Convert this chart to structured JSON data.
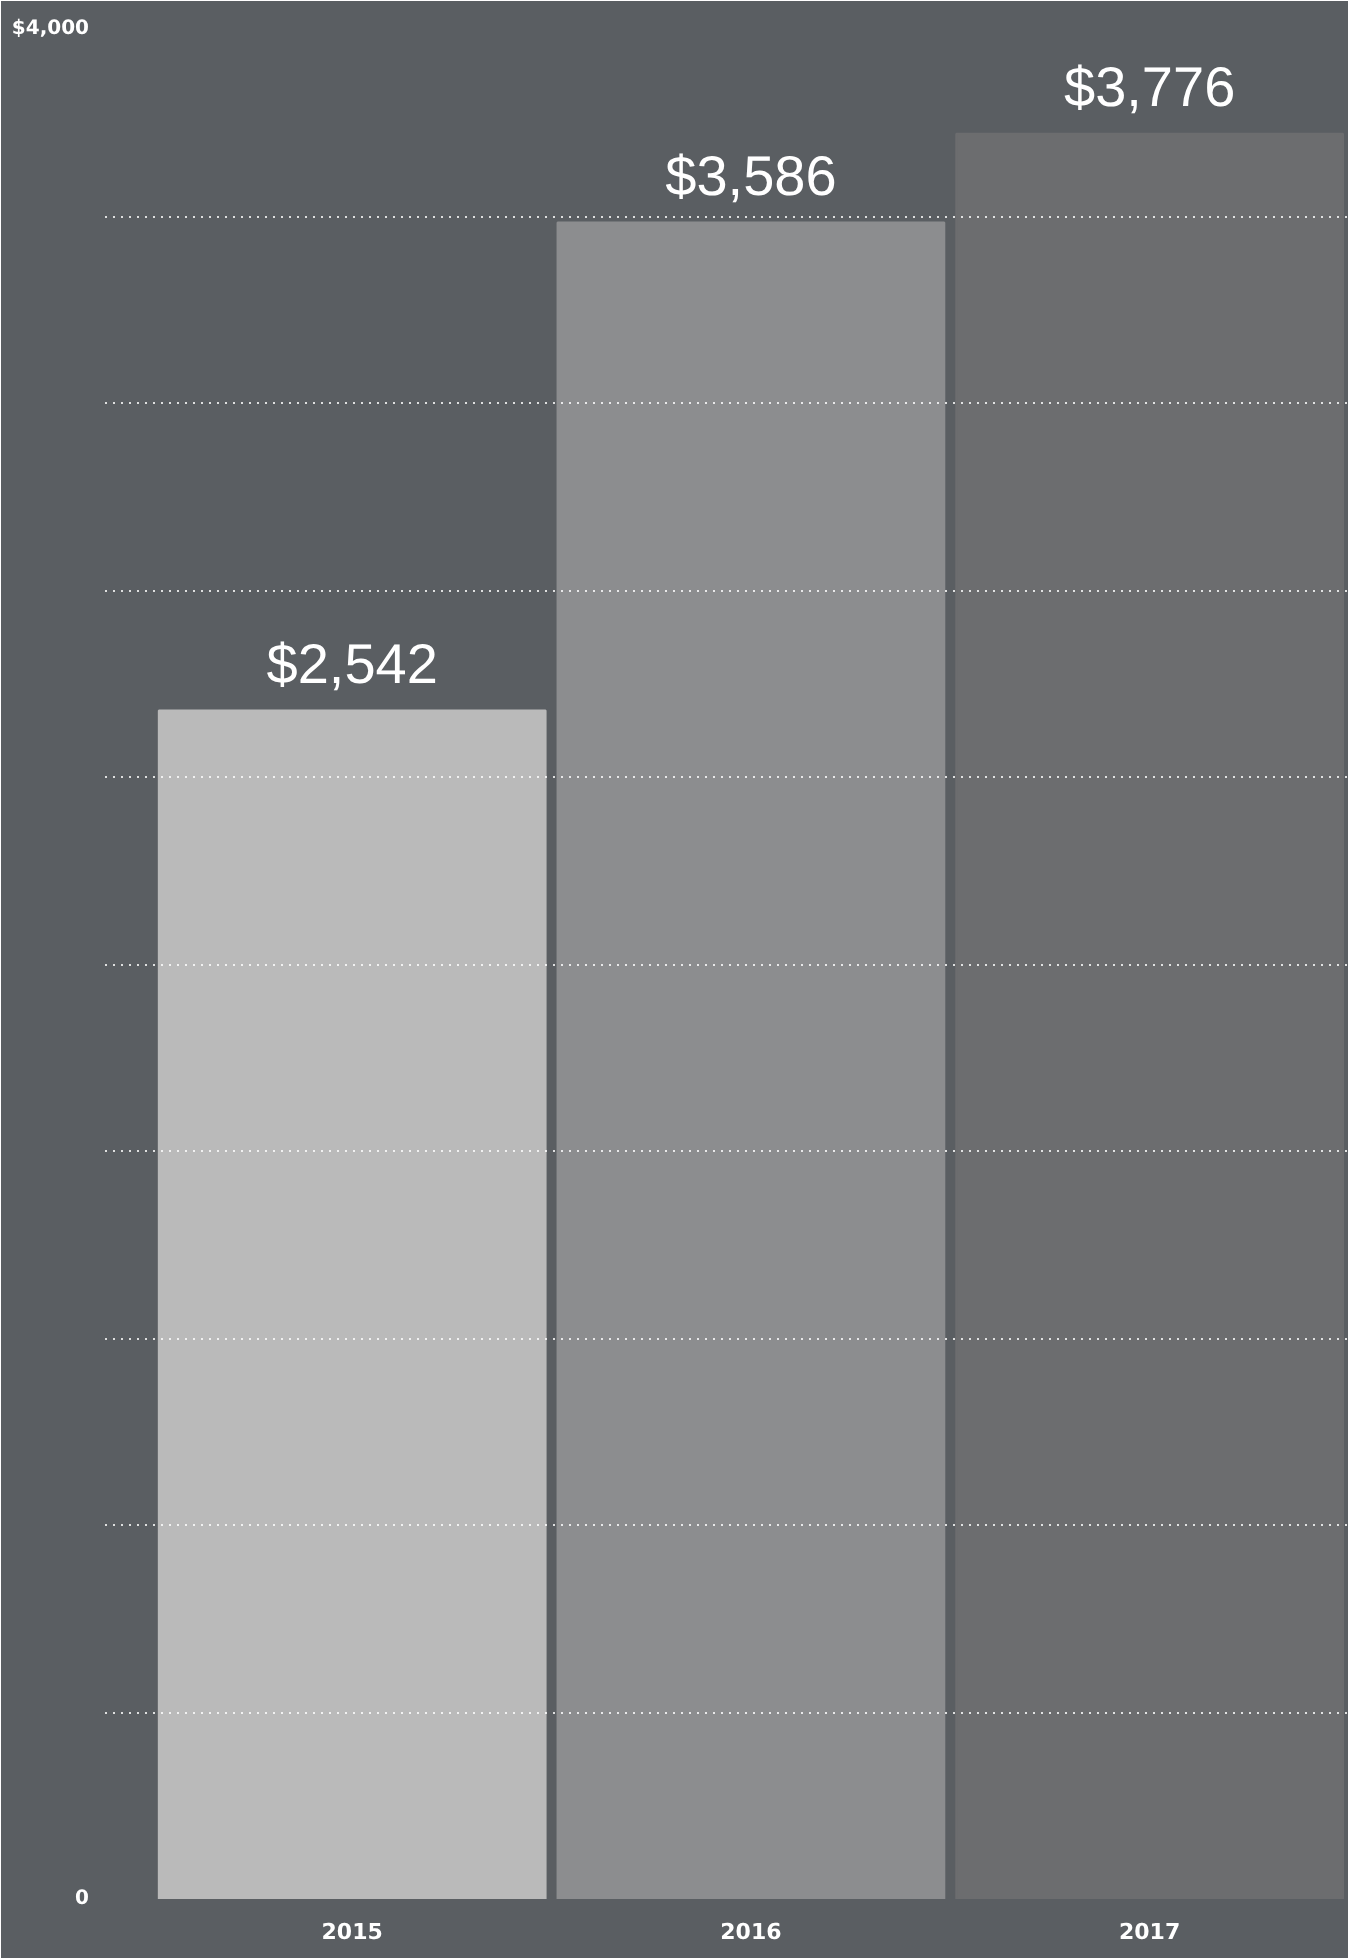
{
  "chart_data": {
    "type": "bar",
    "categories": [
      "2015",
      "2016",
      "2017"
    ],
    "values": [
      2542,
      3586,
      3776
    ],
    "colors": [
      "#bababa",
      "#8c8d8f",
      "#6c6d6f"
    ],
    "value_labels": [
      "$2,542",
      "$3,586",
      "$3,776"
    ],
    "ylim": [
      0,
      4000
    ],
    "yticks": [
      {
        "value": 0,
        "label": "0"
      },
      {
        "value": 400,
        "label": null
      },
      {
        "value": 800,
        "label": null
      },
      {
        "value": 1200,
        "label": null
      },
      {
        "value": 1600,
        "label": null
      },
      {
        "value": 2000,
        "label": null
      },
      {
        "value": 2400,
        "label": null
      },
      {
        "value": 2800,
        "label": null
      },
      {
        "value": 3200,
        "label": null
      },
      {
        "value": 3600,
        "label": null
      },
      {
        "value": 4000,
        "label": "$4,000"
      }
    ],
    "grid": "y"
  }
}
